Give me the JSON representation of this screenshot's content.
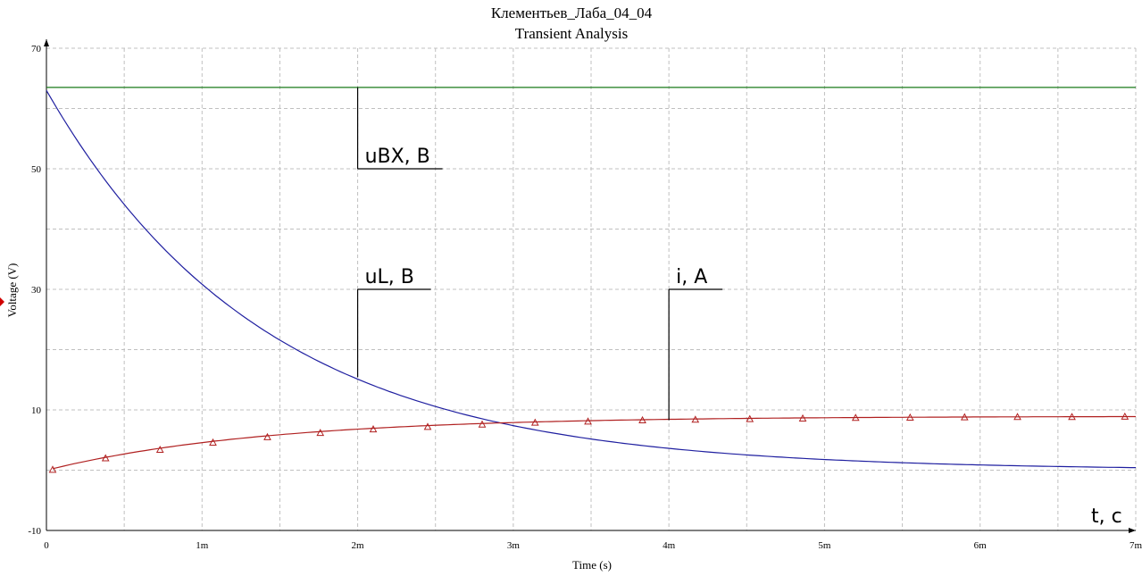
{
  "chart_data": {
    "type": "line",
    "title": "Клементьев_Лаба_04_04",
    "subtitle": "Transient Analysis",
    "xlabel": "Time (s)",
    "ylabel": "Voltage (V)",
    "xlim": [
      0,
      0.007
    ],
    "ylim": [
      -10,
      70
    ],
    "x_ticks": [
      {
        "value": 0,
        "label": "0"
      },
      {
        "value": 0.001,
        "label": "1m"
      },
      {
        "value": 0.002,
        "label": "2m"
      },
      {
        "value": 0.003,
        "label": "3m"
      },
      {
        "value": 0.004,
        "label": "4m"
      },
      {
        "value": 0.005,
        "label": "5m"
      },
      {
        "value": 0.006,
        "label": "6m"
      },
      {
        "value": 0.007,
        "label": "7m"
      }
    ],
    "y_ticks": [
      {
        "value": -10,
        "label": "-10"
      },
      {
        "value": 10,
        "label": "10"
      },
      {
        "value": 30,
        "label": "30"
      },
      {
        "value": 50,
        "label": "50"
      },
      {
        "value": 70,
        "label": "70"
      }
    ],
    "grid": true,
    "legend": "none",
    "series": [
      {
        "name": "uBX, B",
        "color": "#1a7a1a",
        "marker": "none",
        "x": [
          0,
          0.001,
          0.002,
          0.003,
          0.004,
          0.005,
          0.006,
          0.007
        ],
        "y": [
          63.5,
          63.5,
          63.5,
          63.5,
          63.5,
          63.5,
          63.5,
          63.5
        ]
      },
      {
        "name": "uL, B",
        "color": "#1f1fa0",
        "marker": "none",
        "x": [
          0,
          0.0005,
          0.001,
          0.0015,
          0.002,
          0.0025,
          0.003,
          0.0035,
          0.004,
          0.0045,
          0.005,
          0.0055,
          0.006,
          0.0065,
          0.007
        ],
        "y": [
          63.0,
          44.3,
          31.1,
          21.9,
          15.4,
          10.8,
          7.6,
          5.3,
          3.8,
          2.6,
          1.9,
          1.3,
          0.9,
          0.6,
          0.4
        ]
      },
      {
        "name": "i, A",
        "color": "#b02020",
        "marker": "triangle",
        "x": [
          4e-05,
          0.00038,
          0.00073,
          0.00107,
          0.00142,
          0.00176,
          0.0021,
          0.00245,
          0.0028,
          0.00314,
          0.00348,
          0.00383,
          0.00417,
          0.00452,
          0.00486,
          0.0052,
          0.00555,
          0.0059,
          0.00624,
          0.00659,
          0.00693
        ],
        "y": [
          0.1,
          2.0,
          3.4,
          4.6,
          5.5,
          6.2,
          6.8,
          7.2,
          7.6,
          7.9,
          8.1,
          8.3,
          8.4,
          8.5,
          8.6,
          8.7,
          8.75,
          8.8,
          8.85,
          8.85,
          8.9
        ]
      }
    ],
    "annotations": [
      {
        "text": "uBX, B",
        "x": 0.002,
        "y": 63.5
      },
      {
        "text": "uL, B",
        "x": 0.002,
        "y": 15.4
      },
      {
        "text": "i, A",
        "x": 0.004,
        "y": 8.3
      },
      {
        "text": "t, c",
        "x": 0.007,
        "y": -10
      }
    ]
  }
}
